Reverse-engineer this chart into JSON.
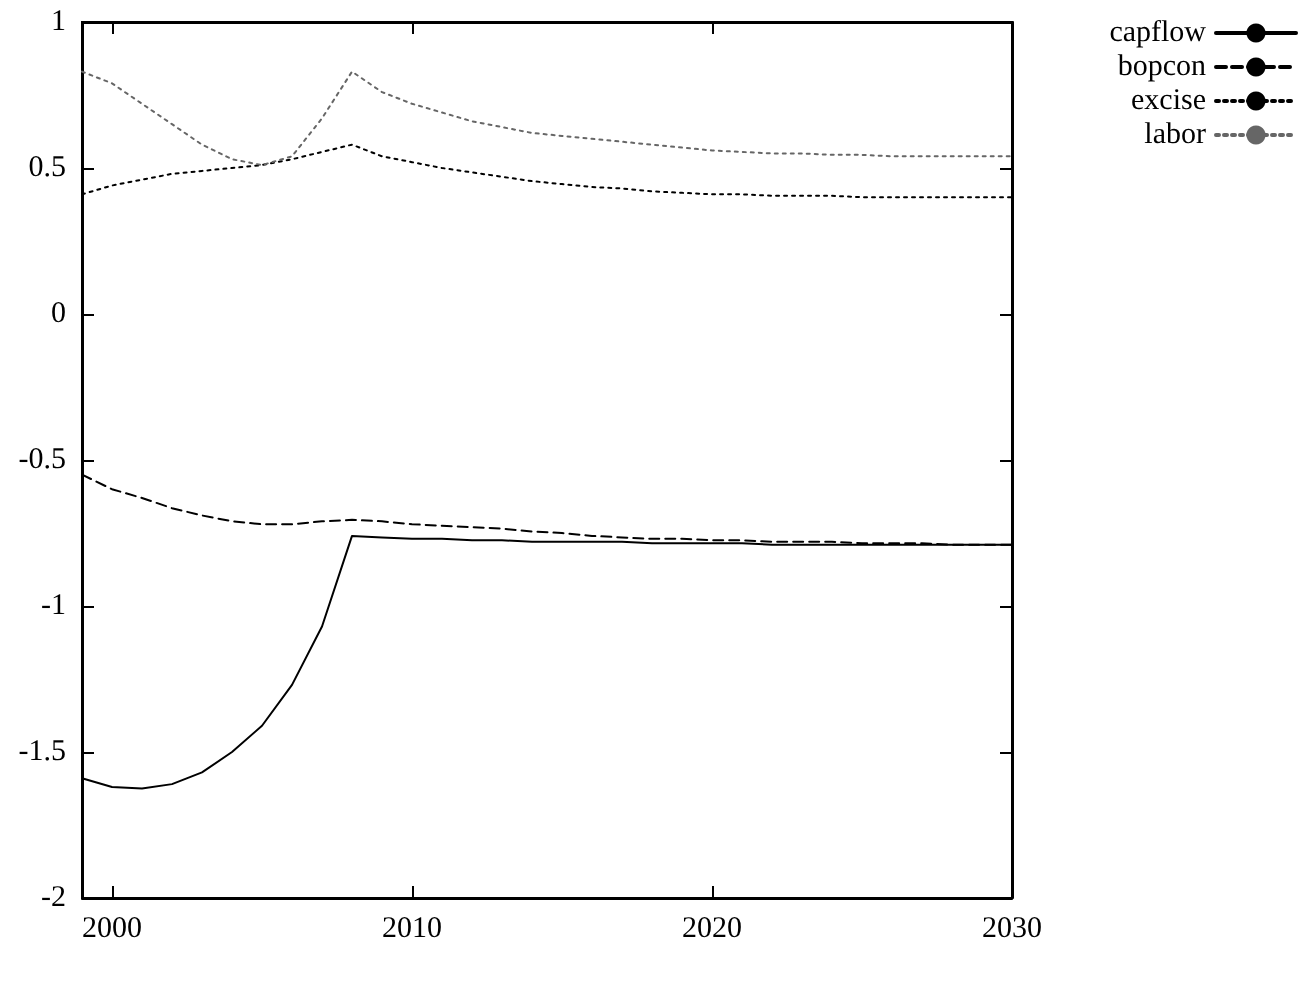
{
  "chart_data": {
    "type": "line",
    "x": [
      1999,
      2000,
      2001,
      2002,
      2003,
      2004,
      2005,
      2006,
      2007,
      2008,
      2009,
      2010,
      2011,
      2012,
      2013,
      2014,
      2015,
      2016,
      2017,
      2018,
      2019,
      2020,
      2021,
      2022,
      2023,
      2024,
      2025,
      2026,
      2027,
      2028,
      2029,
      2030
    ],
    "series": [
      {
        "name": "capflow",
        "color": "#000000",
        "line_style": "solid",
        "values": [
          -1.59,
          -1.62,
          -1.625,
          -1.61,
          -1.57,
          -1.5,
          -1.41,
          -1.27,
          -1.07,
          -0.76,
          -0.765,
          -0.77,
          -0.77,
          -0.775,
          -0.775,
          -0.78,
          -0.78,
          -0.78,
          -0.78,
          -0.785,
          -0.785,
          -0.785,
          -0.785,
          -0.79,
          -0.79,
          -0.79,
          -0.79,
          -0.79,
          -0.79,
          -0.79,
          -0.79,
          -0.79
        ]
      },
      {
        "name": "bopcon",
        "color": "#000000",
        "line_style": "dashed",
        "values": [
          -0.55,
          -0.6,
          -0.63,
          -0.665,
          -0.69,
          -0.71,
          -0.72,
          -0.72,
          -0.71,
          -0.705,
          -0.71,
          -0.72,
          -0.725,
          -0.73,
          -0.735,
          -0.745,
          -0.75,
          -0.76,
          -0.765,
          -0.77,
          -0.77,
          -0.775,
          -0.775,
          -0.78,
          -0.78,
          -0.78,
          -0.785,
          -0.785,
          -0.785,
          -0.79,
          -0.79,
          -0.79
        ]
      },
      {
        "name": "excise",
        "color": "#000000",
        "line_style": "dotted",
        "values": [
          0.41,
          0.44,
          0.46,
          0.48,
          0.49,
          0.5,
          0.51,
          0.53,
          0.555,
          0.58,
          0.54,
          0.52,
          0.5,
          0.485,
          0.47,
          0.455,
          0.445,
          0.435,
          0.43,
          0.42,
          0.415,
          0.41,
          0.41,
          0.405,
          0.405,
          0.405,
          0.4,
          0.4,
          0.4,
          0.4,
          0.4,
          0.4
        ]
      },
      {
        "name": "labor",
        "color": "#666666",
        "line_style": "dotted",
        "values": [
          0.83,
          0.79,
          0.72,
          0.65,
          0.58,
          0.53,
          0.51,
          0.54,
          0.67,
          0.83,
          0.76,
          0.72,
          0.69,
          0.66,
          0.64,
          0.62,
          0.61,
          0.6,
          0.59,
          0.58,
          0.57,
          0.56,
          0.555,
          0.55,
          0.55,
          0.545,
          0.545,
          0.54,
          0.54,
          0.54,
          0.54,
          0.54
        ]
      }
    ],
    "xlim": [
      1999,
      2030
    ],
    "xticks": [
      2000,
      2010,
      2020,
      2030
    ],
    "ylim": [
      -2,
      1
    ],
    "yticks": [
      -2,
      -1.5,
      -1,
      -0.5,
      0,
      0.5,
      1
    ],
    "grid": false,
    "legend": "top right",
    "marker": "none"
  }
}
